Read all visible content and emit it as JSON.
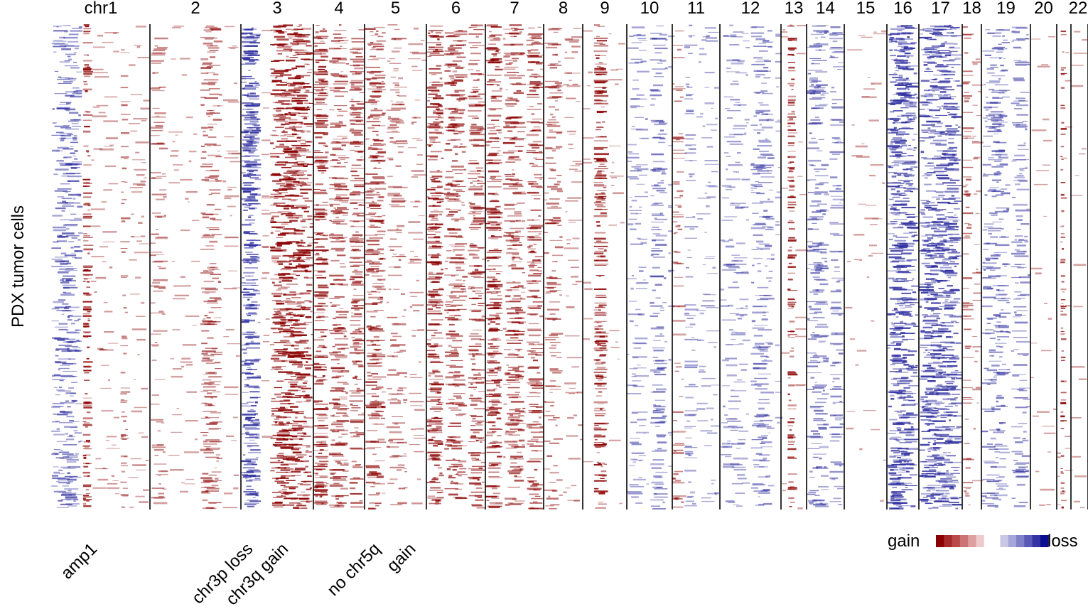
{
  "chart_data": {
    "type": "heatmap",
    "ylabel": "PDX  tumor cells",
    "chromosomes": [
      {
        "label": "chr1",
        "state": "arm-loss-focal-gain"
      },
      {
        "label": "2",
        "state": "weak-gain-2p"
      },
      {
        "label": "3",
        "state": "p-loss-q-gain"
      },
      {
        "label": "4",
        "state": "gain"
      },
      {
        "label": "5",
        "state": "partial-gain"
      },
      {
        "label": "6",
        "state": "gain"
      },
      {
        "label": "7",
        "state": "gain"
      },
      {
        "label": "8",
        "state": "weak-gain"
      },
      {
        "label": "9",
        "state": "focal-gain"
      },
      {
        "label": "10",
        "state": "weak-loss"
      },
      {
        "label": "11",
        "state": "mixed"
      },
      {
        "label": "12",
        "state": "weak-loss"
      },
      {
        "label": "13",
        "state": "focal-gain"
      },
      {
        "label": "14",
        "state": "loss"
      },
      {
        "label": "15",
        "state": "neutral"
      },
      {
        "label": "16",
        "state": "strong-loss"
      },
      {
        "label": "17",
        "state": "strong-loss"
      },
      {
        "label": "18",
        "state": "weak-gain"
      },
      {
        "label": "19",
        "state": "loss"
      },
      {
        "label": "20",
        "state": "neutral"
      },
      {
        "label": "",
        "state": "focal-gain"
      },
      {
        "label": "22",
        "state": "neutral"
      }
    ],
    "annotations": [
      "amp1",
      "chr3p loss",
      "chr3q gain",
      "no chr5q",
      "gain"
    ],
    "legend": {
      "gain_label": "gain",
      "loss_label": "loss",
      "gain_colors": [
        "#8b0000",
        "#a52a2a",
        "#b94a4a",
        "#cc7373",
        "#dd9f9f",
        "#eecaca"
      ],
      "loss_colors": [
        "#c8c8e6",
        "#a6a6d8",
        "#8080c8",
        "#5a5ab6",
        "#3434a4",
        "#0d0d8f"
      ]
    },
    "grid": false,
    "legend_position": "bottom-right"
  }
}
